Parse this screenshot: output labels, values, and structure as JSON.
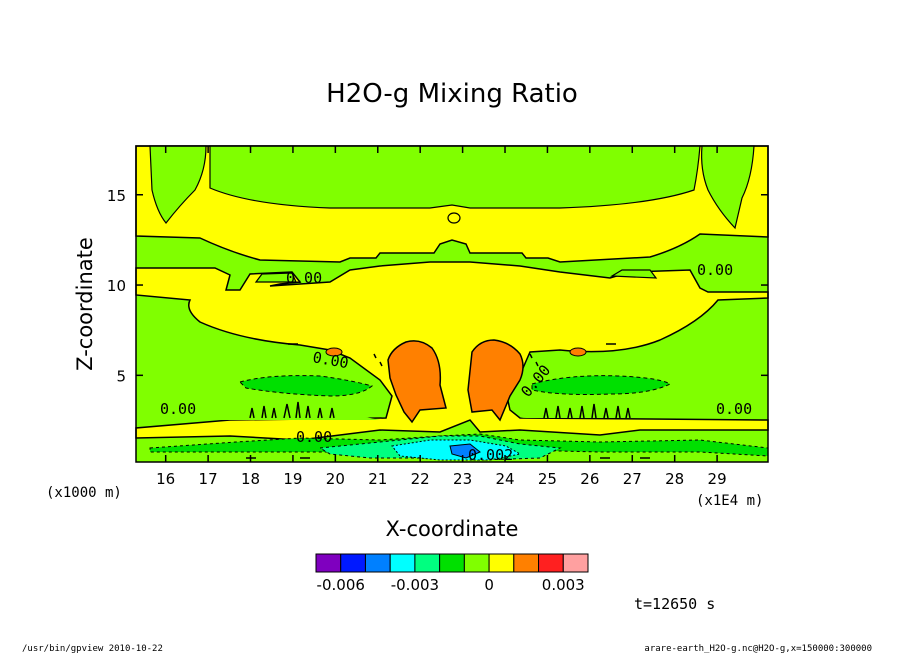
{
  "chart_data": {
    "type": "heatmap",
    "title": "H2O-g Mixing Ratio",
    "xlabel": "X-coordinate",
    "ylabel": "Z-coordinate",
    "x_multiplier": "(x1E4 m)",
    "y_multiplier": "(x1000 m)",
    "xlim": [
      15.3,
      30.2
    ],
    "ylim": [
      0.2,
      17.7
    ],
    "xticks": [
      16,
      17,
      18,
      19,
      20,
      21,
      22,
      23,
      24,
      25,
      26,
      27,
      28,
      29
    ],
    "yticks": [
      5,
      10,
      15
    ],
    "contour_labels": [
      {
        "text": "0.00",
        "x": 19.4,
        "y": 10.4
      },
      {
        "text": "0.00",
        "x": 28.6,
        "y": 10.9
      },
      {
        "text": "0.00",
        "x": 16.0,
        "y": 3.0
      },
      {
        "text": "0.00",
        "x": 29.1,
        "y": 3.0
      },
      {
        "text": "0.00",
        "x": 19.6,
        "y": 1.4
      },
      {
        "text": "0.00",
        "x": 20.0,
        "y": 6.2
      },
      {
        "text": "0.00",
        "x": 24.5,
        "y": 4.9
      },
      {
        "text": "0.002",
        "x": 23.1,
        "y": 0.55
      }
    ],
    "fields": {
      "upper_yellow_band": {
        "level_range": [
          0.0,
          0.0005
        ],
        "z": [
          11.3,
          17.7
        ]
      },
      "main_yellow_plume": {
        "level_range": [
          0.0,
          0.0005
        ],
        "x": [
          17.4,
          27.6
        ],
        "z": [
          5.2,
          11.3
        ]
      },
      "orange_cores": {
        "level_range": [
          0.0005,
          0.001
        ],
        "x_left": [
          21.2,
          22.5
        ],
        "x_right": [
          22.9,
          24.2
        ],
        "z": [
          2.0,
          7.0
        ]
      },
      "negative_layer": {
        "level_range": [
          -0.003,
          0.0
        ],
        "x": [
          17.5,
          27.5
        ],
        "z": [
          0.2,
          1.3
        ]
      }
    },
    "colorbar": {
      "colors": [
        "#7f00bf",
        "#0019ff",
        "#0080ff",
        "#00ffff",
        "#00ff80",
        "#00e000",
        "#80ff00",
        "#ffff00",
        "#ff8000",
        "#ff2020",
        "#ffa0a0"
      ],
      "tick_labels": [
        "-0.006",
        "-0.003",
        "0",
        "0.003"
      ]
    },
    "palette": {
      "bg_green": "#80ff00",
      "yellow": "#ffff00",
      "orange": "#ff8000",
      "green": "#00e000",
      "mint": "#00ff80",
      "cyan": "#00ffff",
      "blue": "#0080ff"
    }
  },
  "annotations": {
    "time": "t=12650 s",
    "footer_left": "/usr/bin/gpview   2010-10-22",
    "footer_right": "arare-earth_H2O-g.nc@H2O-g,x=150000:300000"
  }
}
